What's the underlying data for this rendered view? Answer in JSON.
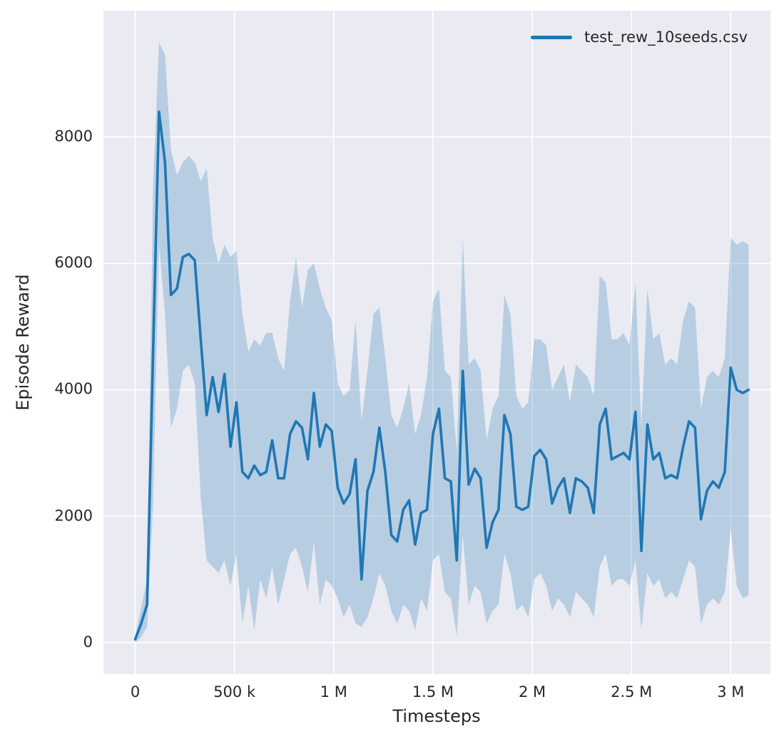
{
  "figure": {
    "background": "#ffffff",
    "axes_background": "#eaeaf2",
    "grid_color": "#ffffff",
    "text_color": "#262626"
  },
  "chart_data": {
    "type": "line",
    "title": "",
    "xlabel": "Timesteps",
    "ylabel": "Episode Reward",
    "grid": true,
    "legend": {
      "position": "upper right",
      "label": "test_rew_10seeds.csv"
    },
    "xlim": [
      -160000,
      3200000
    ],
    "ylim": [
      -500,
      10000
    ],
    "xticks": {
      "values": [
        0,
        500000,
        1000000,
        1500000,
        2000000,
        2500000,
        3000000
      ],
      "labels": [
        "0",
        "500 k",
        "1 M",
        "1.5 M",
        "2 M",
        "2.5 M",
        "3 M"
      ]
    },
    "yticks": {
      "values": [
        0,
        2000,
        4000,
        6000,
        8000
      ],
      "labels": [
        "0",
        "2000",
        "4000",
        "6000",
        "8000"
      ]
    },
    "series": [
      {
        "name": "test_rew_10seeds.csv",
        "color": "#1f77b4",
        "band_color": "#1f77b4",
        "band_opacity": 0.25,
        "x": [
          0,
          30000,
          60000,
          90000,
          120000,
          150000,
          180000,
          210000,
          240000,
          270000,
          300000,
          330000,
          360000,
          390000,
          420000,
          450000,
          480000,
          510000,
          540000,
          570000,
          600000,
          630000,
          660000,
          690000,
          720000,
          750000,
          780000,
          810000,
          840000,
          870000,
          900000,
          930000,
          960000,
          990000,
          1020000,
          1050000,
          1080000,
          1110000,
          1140000,
          1170000,
          1200000,
          1230000,
          1260000,
          1290000,
          1320000,
          1350000,
          1380000,
          1410000,
          1440000,
          1470000,
          1500000,
          1530000,
          1560000,
          1590000,
          1620000,
          1650000,
          1680000,
          1710000,
          1740000,
          1770000,
          1800000,
          1830000,
          1860000,
          1890000,
          1920000,
          1950000,
          1980000,
          2010000,
          2040000,
          2070000,
          2100000,
          2130000,
          2160000,
          2190000,
          2220000,
          2250000,
          2280000,
          2310000,
          2340000,
          2370000,
          2400000,
          2430000,
          2460000,
          2490000,
          2520000,
          2550000,
          2580000,
          2610000,
          2640000,
          2670000,
          2700000,
          2730000,
          2760000,
          2790000,
          2820000,
          2850000,
          2880000,
          2910000,
          2940000,
          2970000,
          3000000,
          3030000,
          3060000,
          3090000
        ],
        "mean": [
          50,
          300,
          600,
          4600,
          8400,
          7600,
          5500,
          5600,
          6100,
          6150,
          6050,
          4800,
          3600,
          4200,
          3650,
          4250,
          3100,
          3800,
          2700,
          2600,
          2800,
          2650,
          2700,
          3200,
          2600,
          2600,
          3300,
          3500,
          3400,
          2900,
          3950,
          3100,
          3450,
          3350,
          2450,
          2200,
          2350,
          2900,
          1000,
          2400,
          2700,
          3400,
          2700,
          1700,
          1600,
          2100,
          2250,
          1550,
          2050,
          2100,
          3300,
          3700,
          2600,
          2550,
          1300,
          4300,
          2500,
          2750,
          2600,
          1500,
          1900,
          2100,
          3600,
          3300,
          2150,
          2100,
          2150,
          2950,
          3050,
          2900,
          2200,
          2450,
          2600,
          2050,
          2600,
          2550,
          2450,
          2050,
          3450,
          3700,
          2900,
          2950,
          3000,
          2900,
          3650,
          1450,
          3450,
          2900,
          3000,
          2600,
          2650,
          2600,
          3100,
          3500,
          3400,
          1950,
          2400,
          2550,
          2450,
          2700,
          4350,
          4000,
          3950,
          4000
        ],
        "lo": [
          0,
          80,
          250,
          2200,
          6300,
          5200,
          3400,
          3700,
          4300,
          4400,
          4100,
          2300,
          1300,
          1200,
          1100,
          1300,
          900,
          1400,
          300,
          900,
          200,
          1000,
          700,
          1200,
          600,
          1000,
          1400,
          1500,
          1200,
          800,
          1600,
          600,
          1000,
          900,
          700,
          400,
          600,
          300,
          250,
          400,
          700,
          1100,
          900,
          500,
          300,
          600,
          500,
          200,
          700,
          500,
          1300,
          1400,
          800,
          700,
          100,
          1700,
          600,
          900,
          800,
          300,
          500,
          600,
          1400,
          1100,
          500,
          600,
          400,
          1000,
          1100,
          900,
          500,
          700,
          600,
          400,
          800,
          700,
          600,
          400,
          1200,
          1400,
          900,
          1000,
          1000,
          900,
          1300,
          200,
          1100,
          900,
          1000,
          700,
          800,
          700,
          1000,
          1300,
          1200,
          300,
          600,
          700,
          600,
          800,
          1800,
          900,
          700,
          750
        ],
        "hi": [
          120,
          550,
          1000,
          7200,
          9500,
          9300,
          7800,
          7400,
          7600,
          7700,
          7600,
          7300,
          7500,
          6400,
          6000,
          6300,
          6100,
          6200,
          5200,
          4600,
          4800,
          4700,
          4900,
          4900,
          4500,
          4300,
          5400,
          6100,
          5300,
          5900,
          6000,
          5600,
          5300,
          5100,
          4100,
          3900,
          4000,
          5100,
          3500,
          4300,
          5200,
          5300,
          4500,
          3600,
          3400,
          3700,
          4100,
          3300,
          3600,
          4200,
          5400,
          5600,
          4300,
          4200,
          3000,
          6400,
          4400,
          4500,
          4300,
          3200,
          3700,
          3900,
          5500,
          5200,
          3900,
          3700,
          3800,
          4800,
          4800,
          4700,
          4000,
          4200,
          4400,
          3800,
          4400,
          4300,
          4200,
          3900,
          5800,
          5700,
          4800,
          4800,
          4900,
          4700,
          5700,
          3400,
          5600,
          4800,
          4900,
          4400,
          4500,
          4400,
          5100,
          5400,
          5300,
          3700,
          4200,
          4300,
          4200,
          4500,
          6400,
          6300,
          6350,
          6300
        ]
      }
    ]
  }
}
